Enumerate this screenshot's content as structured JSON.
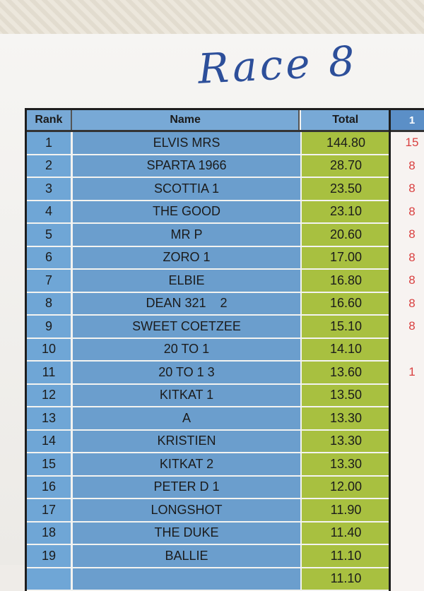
{
  "heading": "Race 8",
  "columns": {
    "rank": "Rank",
    "name": "Name",
    "total": "Total",
    "extra": "1"
  },
  "rows": [
    {
      "rank": "1",
      "name": "ELVIS MRS",
      "total": "144.80",
      "extra": "15"
    },
    {
      "rank": "2",
      "name": "SPARTA 1966",
      "total": "28.70",
      "extra": "8"
    },
    {
      "rank": "3",
      "name": "SCOTTIA 1",
      "total": "23.50",
      "extra": "8"
    },
    {
      "rank": "4",
      "name": "THE GOOD",
      "total": "23.10",
      "extra": "8"
    },
    {
      "rank": "5",
      "name": "MR P",
      "total": "20.60",
      "extra": "8"
    },
    {
      "rank": "6",
      "name": "ZORO 1",
      "total": "17.00",
      "extra": "8"
    },
    {
      "rank": "7",
      "name": "ELBIE",
      "total": "16.80",
      "extra": "8"
    },
    {
      "rank": "8",
      "name": "DEAN 321    2",
      "total": "16.60",
      "extra": "8"
    },
    {
      "rank": "9",
      "name": "SWEET COETZEE",
      "total": "15.10",
      "extra": "8"
    },
    {
      "rank": "10",
      "name": "20 TO 1",
      "total": "14.10",
      "extra": ""
    },
    {
      "rank": "11",
      "name": "20 TO 1 3",
      "total": "13.60",
      "extra": "1"
    },
    {
      "rank": "12",
      "name": "KITKAT 1",
      "total": "13.50",
      "extra": ""
    },
    {
      "rank": "13",
      "name": "A",
      "total": "13.30",
      "extra": ""
    },
    {
      "rank": "14",
      "name": "KRISTIEN",
      "total": "13.30",
      "extra": ""
    },
    {
      "rank": "15",
      "name": "KITKAT 2",
      "total": "13.30",
      "extra": ""
    },
    {
      "rank": "16",
      "name": "PETER D 1",
      "total": "12.00",
      "extra": ""
    },
    {
      "rank": "17",
      "name": "LONGSHOT",
      "total": "11.90",
      "extra": ""
    },
    {
      "rank": "18",
      "name": "THE DUKE",
      "total": "11.40",
      "extra": ""
    },
    {
      "rank": "19",
      "name": "BALLIE",
      "total": "11.10",
      "extra": ""
    },
    {
      "rank": "",
      "name": "",
      "total": "11.10",
      "extra": ""
    }
  ]
}
